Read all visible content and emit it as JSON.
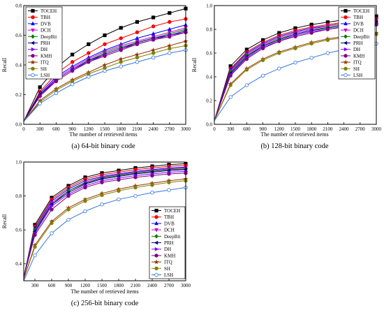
{
  "chart_data": [
    {
      "type": "line",
      "caption": "(a) 64-bit binary code",
      "xlabel": "The number of retrieved items",
      "ylabel": "Recall",
      "xlim": [
        0,
        3000
      ],
      "ylim": [
        0,
        0.8
      ],
      "x_ticks": [
        "0",
        "300",
        "600",
        "900",
        "1200",
        "1500",
        "1800",
        "2100",
        "2400",
        "2700",
        "3000"
      ],
      "y_ticks": [
        "0.0",
        "0.2",
        "0.4",
        "0.6",
        "0.8"
      ],
      "legend": "top-left",
      "x": [
        0,
        300,
        600,
        900,
        1200,
        1500,
        1800,
        2100,
        2400,
        2700,
        3000
      ],
      "series": [
        {
          "name": "TOCEH",
          "color": "#000000",
          "marker": "square",
          "values": [
            0.02,
            0.25,
            0.38,
            0.47,
            0.54,
            0.6,
            0.65,
            0.69,
            0.72,
            0.75,
            0.78
          ]
        },
        {
          "name": "TBH",
          "color": "#ff0000",
          "marker": "circle",
          "values": [
            0.02,
            0.22,
            0.34,
            0.42,
            0.48,
            0.54,
            0.58,
            0.62,
            0.66,
            0.69,
            0.71
          ]
        },
        {
          "name": "DVB",
          "color": "#0000ff",
          "marker": "triangle-up",
          "values": [
            0.02,
            0.21,
            0.32,
            0.39,
            0.45,
            0.5,
            0.54,
            0.58,
            0.61,
            0.64,
            0.67
          ]
        },
        {
          "name": "DCH",
          "color": "#cc00cc",
          "marker": "triangle-down",
          "values": [
            0.02,
            0.2,
            0.31,
            0.38,
            0.44,
            0.49,
            0.53,
            0.56,
            0.59,
            0.62,
            0.65
          ]
        },
        {
          "name": "DeepBit",
          "color": "#007700",
          "marker": "diamond",
          "values": [
            0.02,
            0.2,
            0.3,
            0.37,
            0.43,
            0.48,
            0.52,
            0.55,
            0.58,
            0.61,
            0.64
          ]
        },
        {
          "name": "PRH",
          "color": "#000080",
          "marker": "triangle-left",
          "values": [
            0.02,
            0.2,
            0.3,
            0.37,
            0.43,
            0.47,
            0.51,
            0.55,
            0.58,
            0.6,
            0.63
          ]
        },
        {
          "name": "DH",
          "color": "#8000ff",
          "marker": "triangle-right",
          "values": [
            0.02,
            0.19,
            0.3,
            0.37,
            0.42,
            0.47,
            0.51,
            0.54,
            0.57,
            0.6,
            0.62
          ]
        },
        {
          "name": "KMH",
          "color": "#800080",
          "marker": "hexagon",
          "values": [
            0.02,
            0.19,
            0.29,
            0.36,
            0.42,
            0.46,
            0.5,
            0.54,
            0.57,
            0.59,
            0.62
          ]
        },
        {
          "name": "ITQ",
          "color": "#993300",
          "marker": "star",
          "values": [
            0.02,
            0.16,
            0.24,
            0.3,
            0.35,
            0.4,
            0.44,
            0.47,
            0.5,
            0.53,
            0.56
          ]
        },
        {
          "name": "SH",
          "color": "#808000",
          "marker": "pentagon",
          "values": [
            0.02,
            0.15,
            0.23,
            0.29,
            0.34,
            0.38,
            0.42,
            0.45,
            0.48,
            0.51,
            0.53
          ]
        },
        {
          "name": "LSH",
          "color": "#3377dd",
          "marker": "circle-open",
          "values": [
            0.02,
            0.14,
            0.21,
            0.27,
            0.32,
            0.36,
            0.39,
            0.42,
            0.45,
            0.48,
            0.5
          ]
        }
      ]
    },
    {
      "type": "line",
      "caption": "(b) 128-bit binary code",
      "xlabel": "The number of retrieved items",
      "ylabel": "Recall",
      "xlim": [
        0,
        3000
      ],
      "ylim": [
        0,
        1.0
      ],
      "x_ticks": [
        "0",
        "300",
        "600",
        "900",
        "1200",
        "1500",
        "1800",
        "2100",
        "2400",
        "2700",
        "3000"
      ],
      "y_ticks": [
        "0.0",
        "0.2",
        "0.4",
        "0.6",
        "0.8",
        "1.0"
      ],
      "legend": "top-right",
      "x": [
        0,
        300,
        600,
        900,
        1200,
        1500,
        1800,
        2100,
        2400,
        2700,
        3000
      ],
      "series": [
        {
          "name": "TOCEH",
          "color": "#000000",
          "marker": "square",
          "values": [
            0.03,
            0.49,
            0.63,
            0.71,
            0.77,
            0.81,
            0.84,
            0.86,
            0.88,
            0.9,
            0.91
          ]
        },
        {
          "name": "TBH",
          "color": "#ff0000",
          "marker": "circle",
          "values": [
            0.03,
            0.47,
            0.61,
            0.69,
            0.75,
            0.79,
            0.82,
            0.84,
            0.86,
            0.88,
            0.89
          ]
        },
        {
          "name": "DVB",
          "color": "#0000ff",
          "marker": "triangle-up",
          "values": [
            0.03,
            0.46,
            0.6,
            0.68,
            0.74,
            0.78,
            0.81,
            0.83,
            0.85,
            0.87,
            0.88
          ]
        },
        {
          "name": "DCH",
          "color": "#cc00cc",
          "marker": "triangle-down",
          "values": [
            0.03,
            0.45,
            0.59,
            0.67,
            0.73,
            0.77,
            0.8,
            0.83,
            0.85,
            0.86,
            0.87
          ]
        },
        {
          "name": "DeepBit",
          "color": "#007700",
          "marker": "diamond",
          "values": [
            0.03,
            0.44,
            0.58,
            0.66,
            0.72,
            0.76,
            0.79,
            0.82,
            0.84,
            0.85,
            0.86
          ]
        },
        {
          "name": "PRH",
          "color": "#000080",
          "marker": "triangle-left",
          "values": [
            0.03,
            0.43,
            0.57,
            0.66,
            0.71,
            0.76,
            0.79,
            0.81,
            0.83,
            0.85,
            0.86
          ]
        },
        {
          "name": "DH",
          "color": "#8000ff",
          "marker": "triangle-right",
          "values": [
            0.03,
            0.42,
            0.56,
            0.65,
            0.7,
            0.75,
            0.78,
            0.8,
            0.82,
            0.84,
            0.85
          ]
        },
        {
          "name": "KMH",
          "color": "#800080",
          "marker": "hexagon",
          "values": [
            0.03,
            0.41,
            0.55,
            0.64,
            0.7,
            0.74,
            0.77,
            0.8,
            0.82,
            0.83,
            0.84
          ]
        },
        {
          "name": "ITQ",
          "color": "#993300",
          "marker": "star",
          "values": [
            0.03,
            0.34,
            0.47,
            0.55,
            0.61,
            0.65,
            0.69,
            0.72,
            0.74,
            0.76,
            0.77
          ]
        },
        {
          "name": "SH",
          "color": "#808000",
          "marker": "pentagon",
          "values": [
            0.03,
            0.33,
            0.46,
            0.54,
            0.6,
            0.64,
            0.68,
            0.71,
            0.73,
            0.75,
            0.76
          ]
        },
        {
          "name": "LSH",
          "color": "#3377dd",
          "marker": "circle-open",
          "values": [
            0.03,
            0.23,
            0.33,
            0.41,
            0.47,
            0.52,
            0.56,
            0.6,
            0.63,
            0.66,
            0.68
          ]
        }
      ]
    },
    {
      "type": "line",
      "caption": "(c) 256-bit binary code",
      "xlabel": "The number of retrieved items",
      "ylabel": "Recall",
      "xlim": [
        100,
        3000
      ],
      "ylim": [
        0.3,
        1.0
      ],
      "x_ticks": [
        "300",
        "600",
        "900",
        "1200",
        "1500",
        "1800",
        "2100",
        "2400",
        "2700",
        "3000"
      ],
      "y_ticks": [
        "0.4",
        "0.6",
        "0.8",
        "1.0"
      ],
      "legend": "right",
      "x": [
        100,
        300,
        600,
        900,
        1200,
        1500,
        1800,
        2100,
        2400,
        2700,
        3000
      ],
      "series": [
        {
          "name": "TOCEH",
          "color": "#000000",
          "marker": "square",
          "values": [
            0.32,
            0.63,
            0.79,
            0.86,
            0.91,
            0.935,
            0.95,
            0.965,
            0.975,
            0.985,
            0.99
          ]
        },
        {
          "name": "TBH",
          "color": "#ff0000",
          "marker": "circle",
          "values": [
            0.32,
            0.62,
            0.78,
            0.85,
            0.9,
            0.925,
            0.94,
            0.955,
            0.965,
            0.975,
            0.98
          ]
        },
        {
          "name": "DVB",
          "color": "#0000ff",
          "marker": "triangle-up",
          "values": [
            0.32,
            0.61,
            0.77,
            0.84,
            0.89,
            0.915,
            0.93,
            0.945,
            0.955,
            0.965,
            0.97
          ]
        },
        {
          "name": "DCH",
          "color": "#cc00cc",
          "marker": "triangle-down",
          "values": [
            0.32,
            0.6,
            0.76,
            0.83,
            0.88,
            0.91,
            0.925,
            0.94,
            0.95,
            0.96,
            0.965
          ]
        },
        {
          "name": "DeepBit",
          "color": "#007700",
          "marker": "diamond",
          "values": [
            0.32,
            0.6,
            0.75,
            0.83,
            0.875,
            0.905,
            0.92,
            0.935,
            0.945,
            0.955,
            0.96
          ]
        },
        {
          "name": "PRH",
          "color": "#000080",
          "marker": "triangle-left",
          "values": [
            0.32,
            0.59,
            0.75,
            0.82,
            0.87,
            0.9,
            0.915,
            0.93,
            0.94,
            0.95,
            0.955
          ]
        },
        {
          "name": "DH",
          "color": "#8000ff",
          "marker": "triangle-right",
          "values": [
            0.32,
            0.58,
            0.74,
            0.81,
            0.86,
            0.89,
            0.905,
            0.92,
            0.93,
            0.94,
            0.945
          ]
        },
        {
          "name": "KMH",
          "color": "#800080",
          "marker": "hexagon",
          "values": [
            0.32,
            0.57,
            0.72,
            0.8,
            0.85,
            0.88,
            0.895,
            0.91,
            0.92,
            0.93,
            0.935
          ]
        },
        {
          "name": "ITQ",
          "color": "#993300",
          "marker": "star",
          "values": [
            0.31,
            0.51,
            0.65,
            0.73,
            0.78,
            0.815,
            0.84,
            0.86,
            0.875,
            0.89,
            0.9
          ]
        },
        {
          "name": "SH",
          "color": "#808000",
          "marker": "pentagon",
          "values": [
            0.31,
            0.5,
            0.64,
            0.72,
            0.77,
            0.805,
            0.83,
            0.85,
            0.865,
            0.88,
            0.89
          ]
        },
        {
          "name": "LSH",
          "color": "#3377dd",
          "marker": "circle-open",
          "values": [
            0.3,
            0.45,
            0.58,
            0.66,
            0.71,
            0.75,
            0.78,
            0.8,
            0.82,
            0.835,
            0.85
          ]
        }
      ]
    }
  ]
}
